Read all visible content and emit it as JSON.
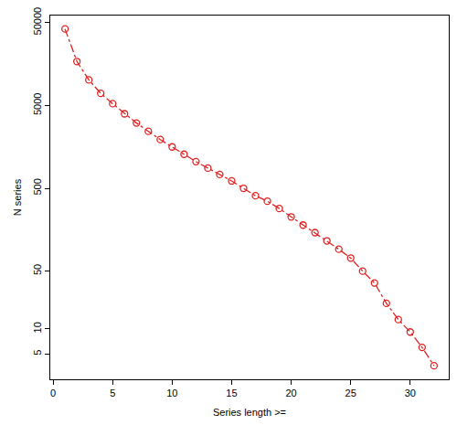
{
  "chart_data": {
    "type": "line",
    "x_label": "Series length >=",
    "y_label": "N series",
    "x": [
      1,
      2,
      3,
      4,
      5,
      6,
      7,
      8,
      9,
      10,
      11,
      12,
      13,
      14,
      15,
      16,
      17,
      18,
      19,
      20,
      21,
      22,
      23,
      24,
      25,
      26,
      27,
      28,
      29,
      30,
      31,
      32
    ],
    "values": [
      42000,
      17000,
      10200,
      7000,
      5260,
      3970,
      3070,
      2440,
      1940,
      1580,
      1290,
      1050,
      877,
      734,
      614,
      500,
      407,
      349,
      285,
      226,
      180,
      146,
      116,
      92,
      72,
      50,
      36,
      20.4,
      13,
      9.2,
      6,
      3.6
    ],
    "color": "#dd2222",
    "marker": "circle-open",
    "line_style": "dashdot",
    "log": "y",
    "grid": false,
    "xlim": [
      -0.24,
      33.24
    ],
    "xticks": [
      0,
      5,
      10,
      15,
      20,
      25,
      30
    ],
    "ylim": [
      2.47,
      61000
    ],
    "yticks": [
      5,
      10,
      50,
      500,
      5000,
      50000
    ]
  }
}
